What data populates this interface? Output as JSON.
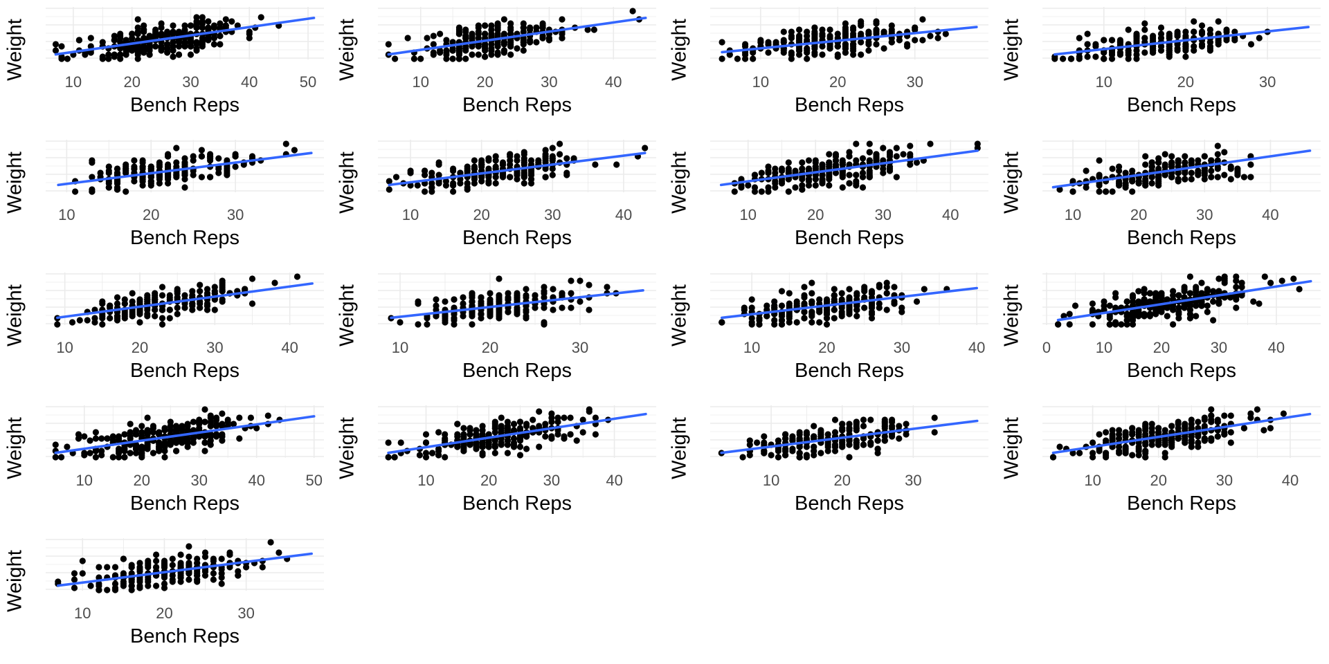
{
  "chart_data": [
    {
      "type": "scatter",
      "xlabel": "Bench Reps",
      "ylabel": "Weight",
      "x_ticks": [
        10,
        20,
        30,
        40,
        50
      ],
      "xlim": [
        6,
        52
      ],
      "trend_line": {
        "x": [
          7,
          51
        ],
        "y": [
          0.05,
          0.85
        ]
      },
      "point_count": 260
    },
    {
      "type": "scatter",
      "xlabel": "Bench Reps",
      "ylabel": "Weight",
      "x_ticks": [
        10,
        20,
        30,
        40
      ],
      "xlim": [
        4,
        46
      ],
      "trend_line": {
        "x": [
          5,
          45
        ],
        "y": [
          0.05,
          0.85
        ]
      },
      "point_count": 200
    },
    {
      "type": "scatter",
      "xlabel": "Bench Reps",
      "ylabel": "Weight",
      "x_ticks": [
        10,
        20,
        30
      ],
      "xlim": [
        4,
        39
      ],
      "trend_line": {
        "x": [
          5,
          38
        ],
        "y": [
          0.1,
          0.65
        ]
      },
      "point_count": 210
    },
    {
      "type": "scatter",
      "xlabel": "Bench Reps",
      "ylabel": "Weight",
      "x_ticks": [
        10,
        20,
        30
      ],
      "xlim": [
        3,
        36
      ],
      "trend_line": {
        "x": [
          4,
          35
        ],
        "y": [
          0.05,
          0.65
        ]
      },
      "point_count": 200
    },
    {
      "type": "scatter",
      "xlabel": "Bench Reps",
      "ylabel": "Weight",
      "x_ticks": [
        10,
        20,
        30
      ],
      "xlim": [
        8,
        40
      ],
      "trend_line": {
        "x": [
          9,
          39
        ],
        "y": [
          0.1,
          0.8
        ]
      },
      "point_count": 190
    },
    {
      "type": "scatter",
      "xlabel": "Bench Reps",
      "ylabel": "Weight",
      "x_ticks": [
        10,
        20,
        30,
        40
      ],
      "xlim": [
        6,
        44
      ],
      "trend_line": {
        "x": [
          7,
          43
        ],
        "y": [
          0.1,
          0.8
        ]
      },
      "point_count": 200
    },
    {
      "type": "scatter",
      "xlabel": "Bench Reps",
      "ylabel": "Weight",
      "x_ticks": [
        10,
        20,
        30,
        40
      ],
      "xlim": [
        5,
        45
      ],
      "trend_line": {
        "x": [
          6,
          44
        ],
        "y": [
          0.1,
          0.85
        ]
      },
      "point_count": 230
    },
    {
      "type": "scatter",
      "xlabel": "Bench Reps",
      "ylabel": "Weight",
      "x_ticks": [
        10,
        20,
        30,
        40
      ],
      "xlim": [
        6,
        47
      ],
      "trend_line": {
        "x": [
          7,
          46
        ],
        "y": [
          0.05,
          0.85
        ]
      },
      "point_count": 190
    },
    {
      "type": "scatter",
      "xlabel": "Bench Reps",
      "ylabel": "Weight",
      "x_ticks": [
        10,
        20,
        30,
        40
      ],
      "xlim": [
        8,
        44
      ],
      "trend_line": {
        "x": [
          9,
          43
        ],
        "y": [
          0.1,
          0.85
        ]
      },
      "point_count": 190
    },
    {
      "type": "scatter",
      "xlabel": "Bench Reps",
      "ylabel": "Weight",
      "x_ticks": [
        10,
        20,
        30
      ],
      "xlim": [
        8,
        38
      ],
      "trend_line": {
        "x": [
          9,
          37
        ],
        "y": [
          0.1,
          0.7
        ]
      },
      "point_count": 190
    },
    {
      "type": "scatter",
      "xlabel": "Bench Reps",
      "ylabel": "Weight",
      "x_ticks": [
        10,
        20,
        30,
        40
      ],
      "xlim": [
        5,
        41
      ],
      "trend_line": {
        "x": [
          6,
          40
        ],
        "y": [
          0.1,
          0.75
        ]
      },
      "point_count": 220
    },
    {
      "type": "scatter",
      "xlabel": "Bench Reps",
      "ylabel": "Weight",
      "x_ticks": [
        0,
        10,
        20,
        30,
        40
      ],
      "xlim": [
        0,
        47
      ],
      "trend_line": {
        "x": [
          2,
          46
        ],
        "y": [
          0.05,
          0.9
        ]
      },
      "point_count": 250
    },
    {
      "type": "scatter",
      "xlabel": "Bench Reps",
      "ylabel": "Weight",
      "x_ticks": [
        10,
        20,
        30,
        40,
        50
      ],
      "xlim": [
        4,
        51
      ],
      "trend_line": {
        "x": [
          5,
          50
        ],
        "y": [
          0.05,
          0.85
        ]
      },
      "point_count": 250
    },
    {
      "type": "scatter",
      "xlabel": "Bench Reps",
      "ylabel": "Weight",
      "x_ticks": [
        10,
        20,
        30,
        40
      ],
      "xlim": [
        3,
        46
      ],
      "trend_line": {
        "x": [
          4,
          45
        ],
        "y": [
          0.05,
          0.9
        ]
      },
      "point_count": 230
    },
    {
      "type": "scatter",
      "xlabel": "Bench Reps",
      "ylabel": "Weight",
      "x_ticks": [
        10,
        20,
        30
      ],
      "xlim": [
        2,
        40
      ],
      "trend_line": {
        "x": [
          3,
          39
        ],
        "y": [
          0.05,
          0.75
        ]
      },
      "point_count": 210
    },
    {
      "type": "scatter",
      "xlabel": "Bench Reps",
      "ylabel": "Weight",
      "x_ticks": [
        10,
        20,
        30,
        40
      ],
      "xlim": [
        3,
        44
      ],
      "trend_line": {
        "x": [
          4,
          43
        ],
        "y": [
          0.05,
          0.9
        ]
      },
      "point_count": 240
    },
    {
      "type": "scatter",
      "xlabel": "Bench Reps",
      "ylabel": "Weight",
      "x_ticks": [
        10,
        20,
        30
      ],
      "xlim": [
        6,
        39
      ],
      "trend_line": {
        "x": [
          7,
          38
        ],
        "y": [
          0.05,
          0.75
        ]
      },
      "point_count": 200
    }
  ],
  "colors": {
    "trend_line": "#3366ff",
    "points": "#000000",
    "grid": "#ebebeb",
    "tick_text": "#4d4d4d"
  }
}
